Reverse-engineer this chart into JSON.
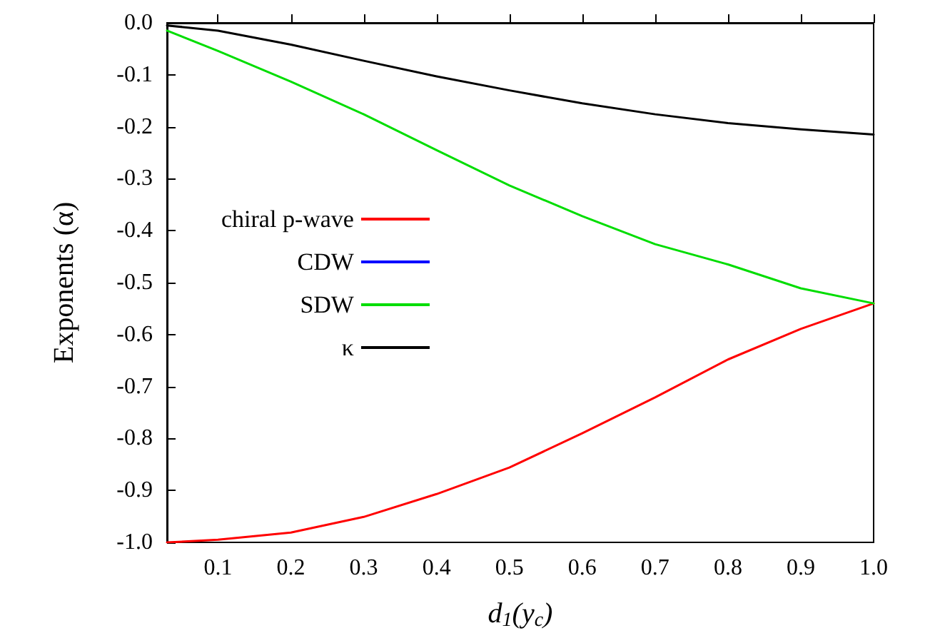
{
  "chart_data": {
    "type": "line",
    "xlabel": "d$_{1}$(y$_{c}$)",
    "ylabel": "Exponents (α)",
    "x": [
      0.03,
      0.1,
      0.2,
      0.3,
      0.4,
      0.5,
      0.6,
      0.7,
      0.8,
      0.9,
      1.0
    ],
    "series": [
      {
        "name": "chiral p-wave",
        "color": "#ff0000",
        "values": [
          -1.0,
          -0.995,
          -0.981,
          -0.951,
          -0.907,
          -0.856,
          -0.79,
          -0.721,
          -0.648,
          -0.589,
          -0.54
        ]
      },
      {
        "name": "CDW",
        "color": "#0000ff",
        "values": [
          null,
          null,
          null,
          null,
          null,
          null,
          null,
          null,
          null,
          null,
          null
        ]
      },
      {
        "name": "SDW",
        "color": "#00dd00",
        "values": [
          -0.015,
          -0.054,
          -0.113,
          -0.176,
          -0.245,
          -0.313,
          -0.372,
          -0.426,
          -0.465,
          -0.511,
          -0.54
        ]
      },
      {
        "name": "κ",
        "color": "#000000",
        "values": [
          -0.005,
          -0.015,
          -0.042,
          -0.073,
          -0.103,
          -0.13,
          -0.155,
          -0.176,
          -0.193,
          -0.205,
          -0.215
        ]
      }
    ],
    "xlim": [
      0.03,
      1.0
    ],
    "ylim": [
      -1.0,
      0.0
    ],
    "xticks": [
      0.1,
      0.2,
      0.3,
      0.4,
      0.5,
      0.6,
      0.7,
      0.8,
      0.9,
      {
        "value": 1.0,
        "label": "1.0"
      }
    ],
    "yticks": [
      {
        "value": 0,
        "label": "0.0"
      },
      -0.1,
      -0.2,
      -0.3,
      -0.4,
      -0.5,
      -0.6,
      -0.7,
      -0.8,
      -0.9,
      {
        "value": -1.0,
        "label": "-1.0"
      }
    ],
    "grid": false,
    "legend": "left",
    "marker": "none",
    "line_style": "solid"
  }
}
